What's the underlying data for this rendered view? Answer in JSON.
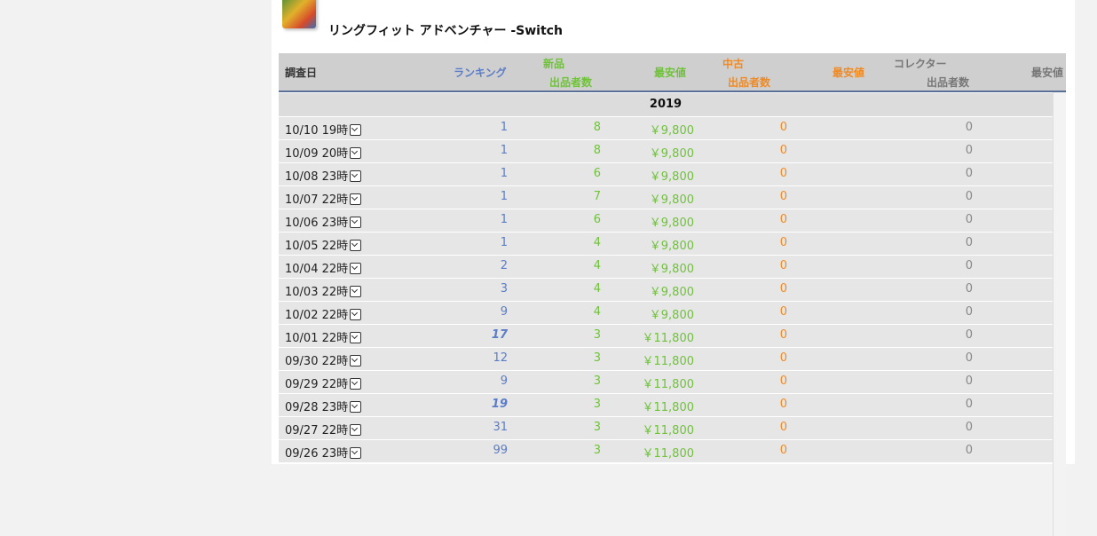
{
  "product": {
    "title": "リングフィット アドベンチャー -Switch"
  },
  "table": {
    "headers": {
      "date": "調査日",
      "ranking": "ランキング",
      "new": "新品",
      "new_sellers": "出品者数",
      "new_min": "最安値",
      "used": "中古",
      "used_sellers": "出品者数",
      "used_min": "最安値",
      "collector": "コレクター",
      "collector_sellers": "出品者数",
      "collector_min": "最安値"
    },
    "year": "2019",
    "rows": [
      {
        "date": "10/10 19時",
        "rank": "1",
        "rank_hi": false,
        "new_count": "8",
        "new_min": "￥9,800",
        "used_count": "0",
        "col_count": "0"
      },
      {
        "date": "10/09 20時",
        "rank": "1",
        "rank_hi": false,
        "new_count": "8",
        "new_min": "￥9,800",
        "used_count": "0",
        "col_count": "0"
      },
      {
        "date": "10/08 23時",
        "rank": "1",
        "rank_hi": false,
        "new_count": "6",
        "new_min": "￥9,800",
        "used_count": "0",
        "col_count": "0"
      },
      {
        "date": "10/07 22時",
        "rank": "1",
        "rank_hi": false,
        "new_count": "7",
        "new_min": "￥9,800",
        "used_count": "0",
        "col_count": "0"
      },
      {
        "date": "10/06 23時",
        "rank": "1",
        "rank_hi": false,
        "new_count": "6",
        "new_min": "￥9,800",
        "used_count": "0",
        "col_count": "0"
      },
      {
        "date": "10/05 22時",
        "rank": "1",
        "rank_hi": false,
        "new_count": "4",
        "new_min": "￥9,800",
        "used_count": "0",
        "col_count": "0"
      },
      {
        "date": "10/04 22時",
        "rank": "2",
        "rank_hi": false,
        "new_count": "4",
        "new_min": "￥9,800",
        "used_count": "0",
        "col_count": "0"
      },
      {
        "date": "10/03 22時",
        "rank": "3",
        "rank_hi": false,
        "new_count": "4",
        "new_min": "￥9,800",
        "used_count": "0",
        "col_count": "0"
      },
      {
        "date": "10/02 22時",
        "rank": "9",
        "rank_hi": false,
        "new_count": "4",
        "new_min": "￥9,800",
        "used_count": "0",
        "col_count": "0"
      },
      {
        "date": "10/01 22時",
        "rank": "17",
        "rank_hi": true,
        "new_count": "3",
        "new_min": "￥11,800",
        "used_count": "0",
        "col_count": "0"
      },
      {
        "date": "09/30 22時",
        "rank": "12",
        "rank_hi": false,
        "new_count": "3",
        "new_min": "￥11,800",
        "used_count": "0",
        "col_count": "0"
      },
      {
        "date": "09/29 22時",
        "rank": "9",
        "rank_hi": false,
        "new_count": "3",
        "new_min": "￥11,800",
        "used_count": "0",
        "col_count": "0"
      },
      {
        "date": "09/28 23時",
        "rank": "19",
        "rank_hi": true,
        "new_count": "3",
        "new_min": "￥11,800",
        "used_count": "0",
        "col_count": "0"
      },
      {
        "date": "09/27 22時",
        "rank": "31",
        "rank_hi": false,
        "new_count": "3",
        "new_min": "￥11,800",
        "used_count": "0",
        "col_count": "0"
      },
      {
        "date": "09/26 23時",
        "rank": "99",
        "rank_hi": false,
        "new_count": "3",
        "new_min": "￥11,800",
        "used_count": "0",
        "col_count": "0"
      }
    ]
  },
  "colors": {
    "rank": "#5b7cc7",
    "new": "#6fc23a",
    "used": "#f08a24",
    "collector": "#777777",
    "header_bg": "#cfcfcf"
  },
  "icons": {
    "product_image": "product-image",
    "row_dropdown": "chevron-down-icon"
  }
}
